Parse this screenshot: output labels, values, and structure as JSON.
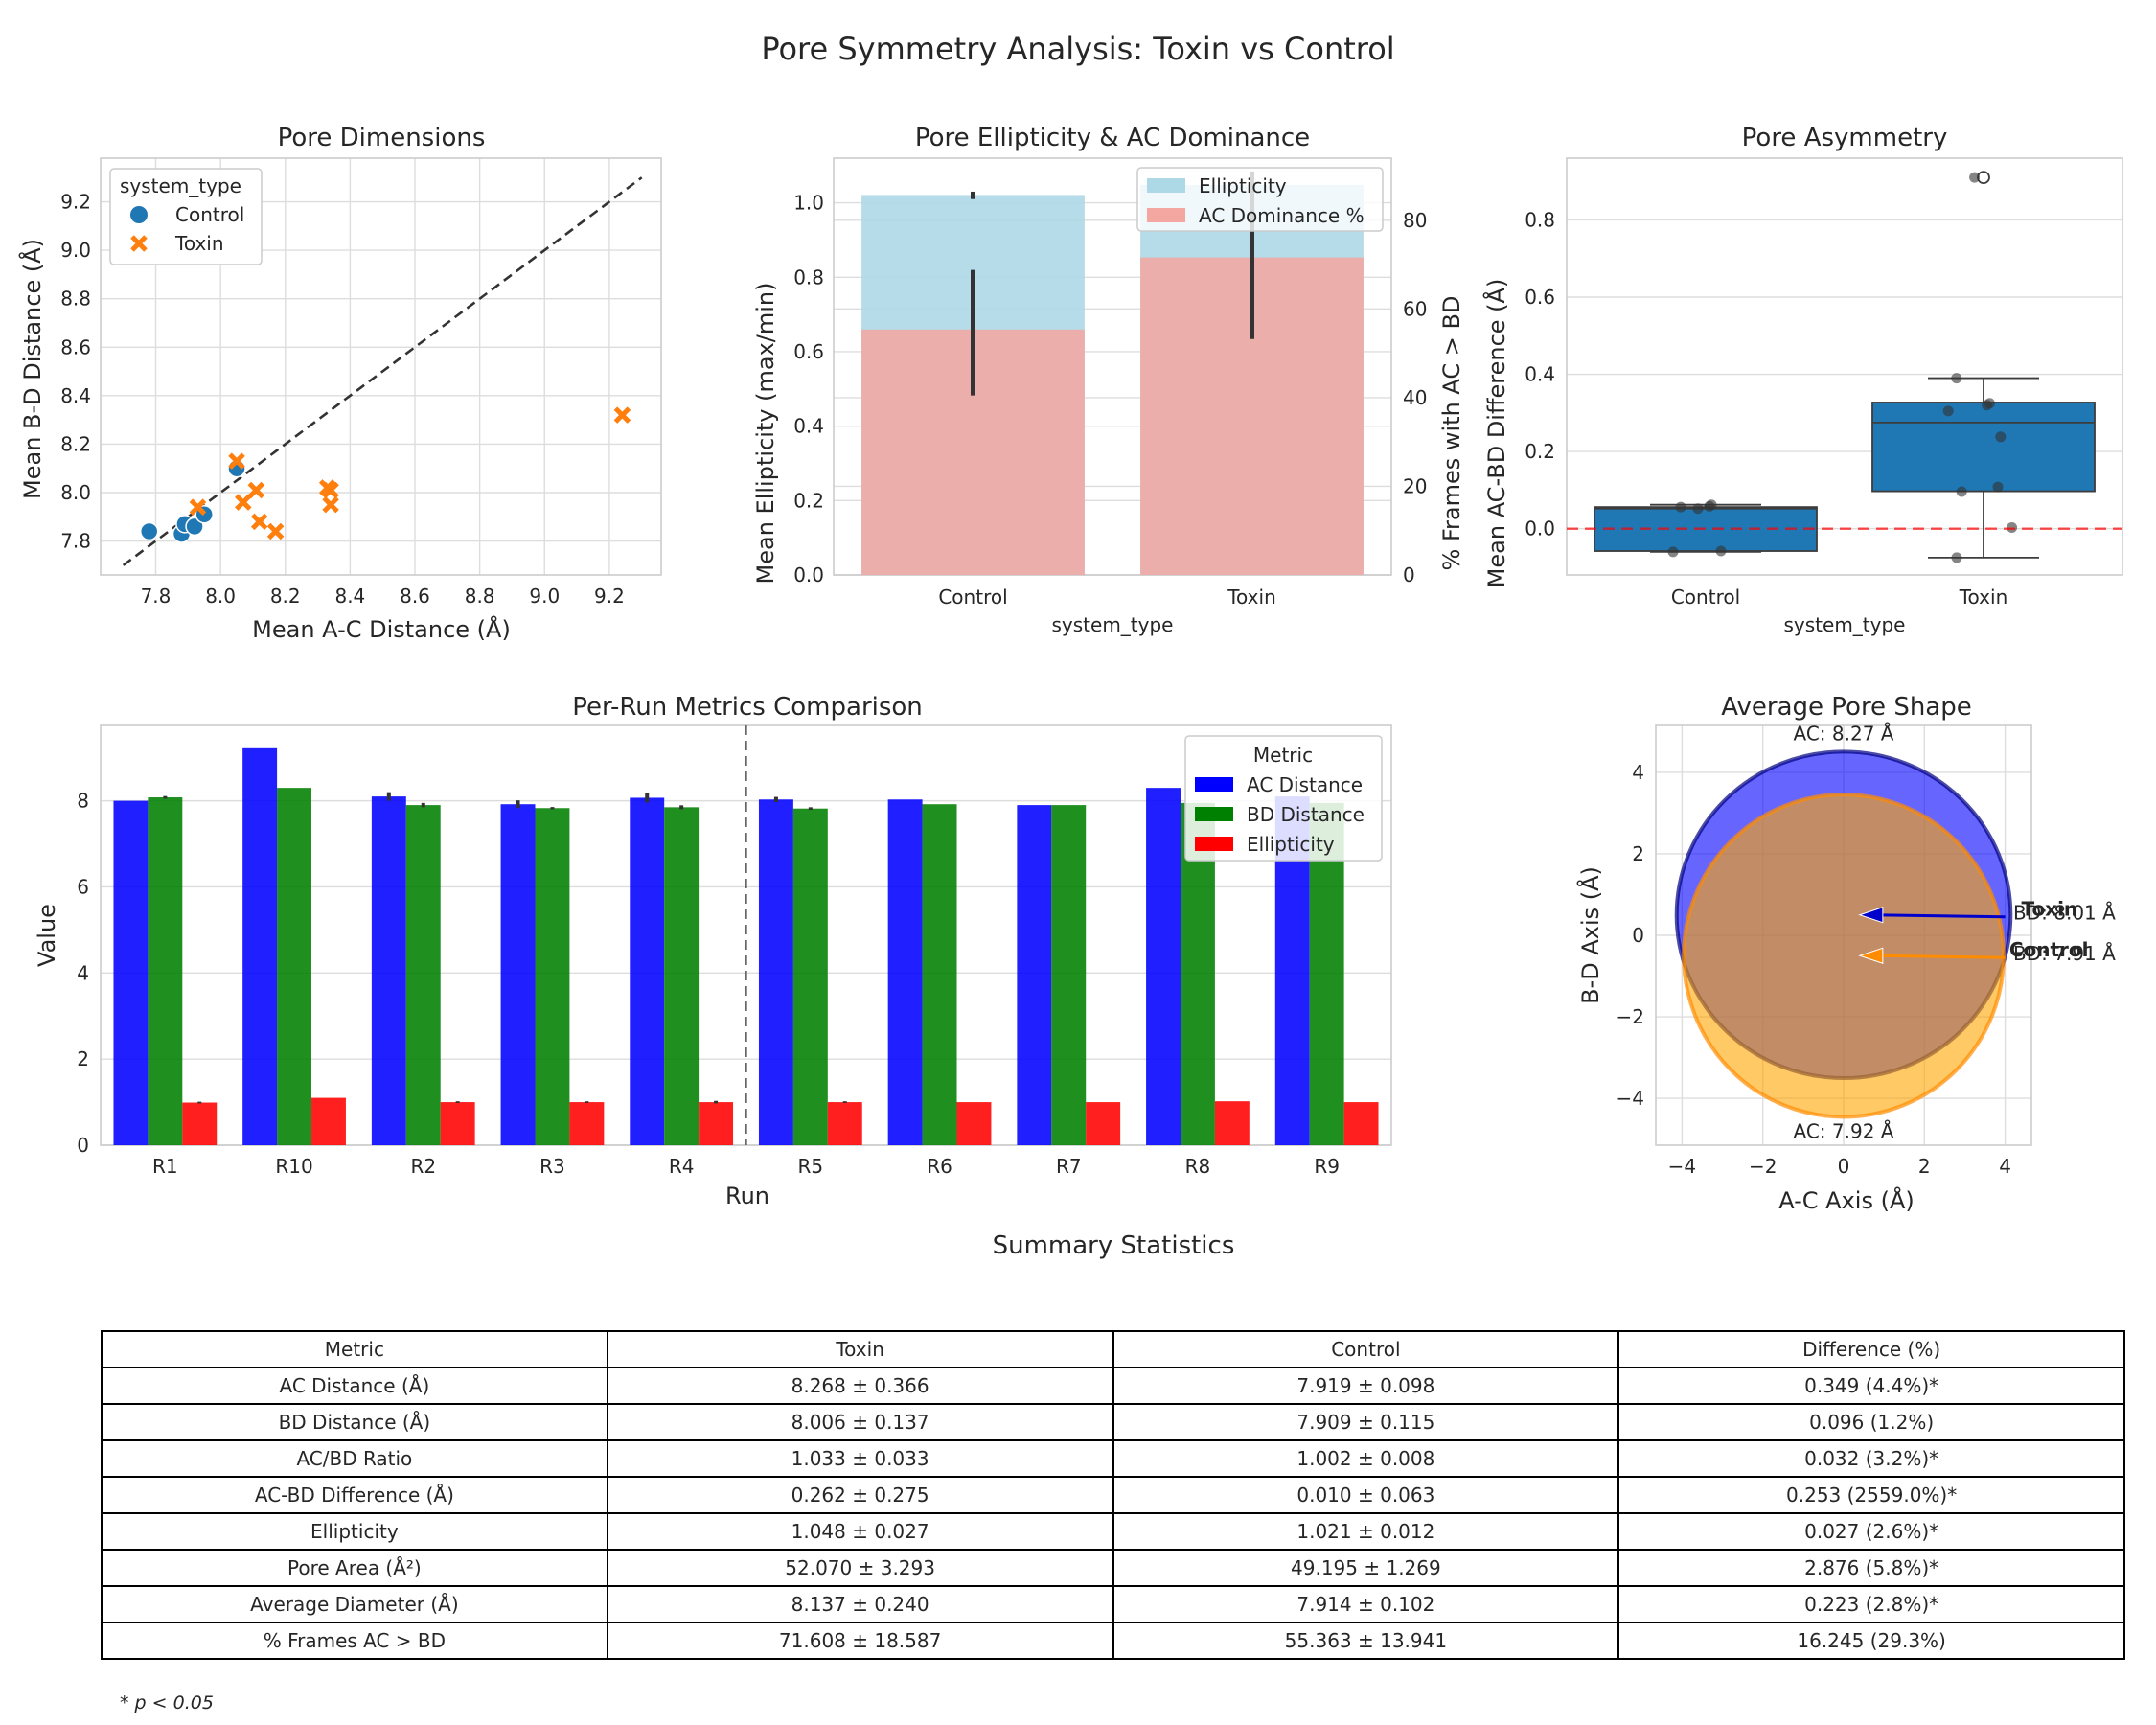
{
  "figure": {
    "title": "Pore Symmetry Analysis: Toxin vs Control"
  },
  "colors": {
    "control": "#1f77b4",
    "toxin": "#ff7f0e",
    "ac": "#0000ff",
    "bd": "#008000",
    "ellipticity": "#ff0000",
    "light_blue": "#add8e6",
    "salmon": "#f4a6a0"
  },
  "chart_data": [
    {
      "id": "pore-dimensions",
      "type": "scatter",
      "title": "Pore Dimensions",
      "xlabel": "Mean A-C Distance (Å)",
      "ylabel": "Mean B-D Distance (Å)",
      "xlim": [
        7.63,
        9.36
      ],
      "ylim": [
        7.66,
        9.38
      ],
      "xticks": [
        "7.8",
        "8.0",
        "8.2",
        "8.4",
        "8.6",
        "8.8",
        "9.0",
        "9.2"
      ],
      "yticks": [
        "7.8",
        "8.0",
        "8.2",
        "8.4",
        "8.6",
        "8.8",
        "9.0",
        "9.2"
      ],
      "grid": true,
      "legend_title": "system_type",
      "legend_position": "top-left",
      "reference_line": {
        "style": "dashed",
        "x": [
          7.7,
          9.3
        ],
        "y": [
          7.7,
          9.3
        ]
      },
      "series": [
        {
          "name": "Control",
          "marker": "circle",
          "x": [
            7.78,
            7.88,
            7.89,
            7.92,
            7.95,
            8.05
          ],
          "y": [
            7.84,
            7.83,
            7.87,
            7.86,
            7.91,
            8.1
          ]
        },
        {
          "name": "Toxin",
          "marker": "x",
          "x": [
            7.93,
            8.05,
            8.07,
            8.11,
            8.12,
            8.17,
            8.33,
            8.34,
            8.34,
            9.24
          ],
          "y": [
            7.94,
            8.13,
            7.96,
            8.01,
            7.88,
            7.84,
            8.02,
            7.95,
            8.01,
            8.32
          ]
        }
      ]
    },
    {
      "id": "ellipticity-dominance",
      "type": "bar",
      "title": "Pore Ellipticity & AC Dominance",
      "xlabel": "system_type",
      "ylabel": "Mean Ellipticity (max/min)",
      "y2label": "% Frames with AC > BD",
      "categories": [
        "Control",
        "Toxin"
      ],
      "ylim": [
        0,
        1.12
      ],
      "y2lim": [
        0,
        94
      ],
      "yticks": [
        "0.0",
        "0.2",
        "0.4",
        "0.6",
        "0.8",
        "1.0"
      ],
      "y2ticks": [
        "0",
        "20",
        "40",
        "60",
        "80"
      ],
      "legend_position": "top-right",
      "series": [
        {
          "name": "Ellipticity",
          "axis": "left",
          "values": [
            1.021,
            1.048
          ],
          "err_low": [
            1.01,
            1.02
          ],
          "err_high": [
            1.03,
            1.08
          ]
        },
        {
          "name": "AC Dominance %",
          "axis": "right",
          "values": [
            55.363,
            71.608
          ],
          "err_low": [
            40.5,
            53.2
          ],
          "err_high": [
            68.8,
            91
          ]
        }
      ]
    },
    {
      "id": "pore-asymmetry",
      "type": "box",
      "title": "Pore Asymmetry",
      "xlabel": "system_type",
      "ylabel": "Mean AC-BD Difference (Å)",
      "categories": [
        "Control",
        "Toxin"
      ],
      "ylim": [
        -0.12,
        0.96
      ],
      "yticks": [
        "0.0",
        "0.2",
        "0.4",
        "0.6",
        "0.8"
      ],
      "reference_line": {
        "y": 0,
        "style": "dashed",
        "color": "#ff0000"
      },
      "boxes": [
        {
          "name": "Control",
          "whislo": -0.06,
          "q1": -0.058,
          "median": 0.052,
          "q3": 0.056,
          "whishi": 0.062,
          "fliers": [],
          "points": [
            0.052,
            0.056,
            0.058,
            0.062,
            -0.06,
            -0.058
          ]
        },
        {
          "name": "Toxin",
          "whislo": -0.075,
          "q1": 0.097,
          "median": 0.275,
          "q3": 0.327,
          "whishi": 0.39,
          "fliers": [
            0.91
          ],
          "points": [
            0.91,
            0.39,
            0.32,
            0.325,
            0.305,
            0.238,
            0.108,
            0.096,
            0.003,
            -0.075
          ]
        }
      ]
    },
    {
      "id": "per-run-metrics",
      "type": "bar",
      "title": "Per-Run Metrics Comparison",
      "xlabel": "Run",
      "ylabel": "Value",
      "categories": [
        "R1",
        "R10",
        "R2",
        "R3",
        "R4",
        "R5",
        "R6",
        "R7",
        "R8",
        "R9"
      ],
      "ylim": [
        0,
        9.75
      ],
      "yticks": [
        "0",
        "2",
        "4",
        "6",
        "8"
      ],
      "legend_title": "Metric",
      "legend_position": "top-right",
      "divider_after": "R4",
      "series": [
        {
          "name": "AC Distance",
          "values": [
            8.0,
            9.22,
            8.1,
            7.92,
            8.07,
            8.03,
            8.03,
            7.9,
            8.3,
            8.1
          ],
          "err": [
            0,
            0,
            0.2,
            0.18,
            0.22,
            0.12,
            0,
            0,
            0,
            0
          ]
        },
        {
          "name": "BD Distance",
          "values": [
            8.08,
            8.3,
            7.9,
            7.83,
            7.85,
            7.82,
            7.92,
            7.9,
            7.95,
            7.95
          ],
          "err": [
            0.06,
            0,
            0.1,
            0.05,
            0.09,
            0.06,
            0,
            0,
            0,
            0
          ]
        },
        {
          "name": "Ellipticity",
          "values": [
            0.99,
            1.1,
            1.0,
            1.0,
            1.0,
            1.0,
            1.0,
            1.0,
            1.02,
            1.0
          ],
          "err": [
            0.04,
            0,
            0.04,
            0.04,
            0.06,
            0.04,
            0,
            0,
            0,
            0
          ]
        }
      ]
    },
    {
      "id": "average-pore-shape",
      "type": "ellipse",
      "title": "Average Pore Shape",
      "xlabel": "A-C Axis (Å)",
      "ylabel": "B-D Axis (Å)",
      "xlim": [
        -4.65,
        4.65
      ],
      "ylim": [
        -5.15,
        5.15
      ],
      "xticks": [
        "−4",
        "−2",
        "0",
        "2",
        "4"
      ],
      "yticks": [
        "−4",
        "−2",
        "0",
        "2",
        "4"
      ],
      "shapes": [
        {
          "name": "Toxin",
          "ac": 8.27,
          "bd": 8.01,
          "cx": 0,
          "cy": 0.5,
          "ac_label": "AC: 8.27 Å",
          "bd_label": "BD: 8.01 Å"
        },
        {
          "name": "Control",
          "ac": 7.92,
          "bd": 7.91,
          "cx": 0,
          "cy": -0.5,
          "ac_label": "AC: 7.92 Å",
          "bd_label": "BD: 7.91 Å"
        }
      ],
      "arrow_labels": [
        "Toxin",
        "Control"
      ]
    },
    {
      "id": "summary-statistics",
      "type": "table",
      "title": "Summary Statistics",
      "columns": [
        "Metric",
        "Toxin",
        "Control",
        "Difference (%)"
      ],
      "rows": [
        [
          "AC Distance (Å)",
          "8.268 ± 0.366",
          "7.919 ± 0.098",
          "0.349 (4.4%)*"
        ],
        [
          "BD Distance (Å)",
          "8.006 ± 0.137",
          "7.909 ± 0.115",
          "0.096 (1.2%)"
        ],
        [
          "AC/BD Ratio",
          "1.033 ± 0.033",
          "1.002 ± 0.008",
          "0.032 (3.2%)*"
        ],
        [
          "AC-BD Difference (Å)",
          "0.262 ± 0.275",
          "0.010 ± 0.063",
          "0.253 (2559.0%)*"
        ],
        [
          "Ellipticity",
          "1.048 ± 0.027",
          "1.021 ± 0.012",
          "0.027 (2.6%)*"
        ],
        [
          "Pore Area (Å²)",
          "52.070 ± 3.293",
          "49.195 ± 1.269",
          "2.876 (5.8%)*"
        ],
        [
          "Average Diameter (Å)",
          "8.137 ± 0.240",
          "7.914 ± 0.102",
          "0.223 (2.8%)*"
        ],
        [
          "% Frames AC > BD",
          "71.608 ± 18.587",
          "55.363 ± 13.941",
          "16.245 (29.3%)"
        ]
      ],
      "footnote": "* p < 0.05"
    }
  ]
}
